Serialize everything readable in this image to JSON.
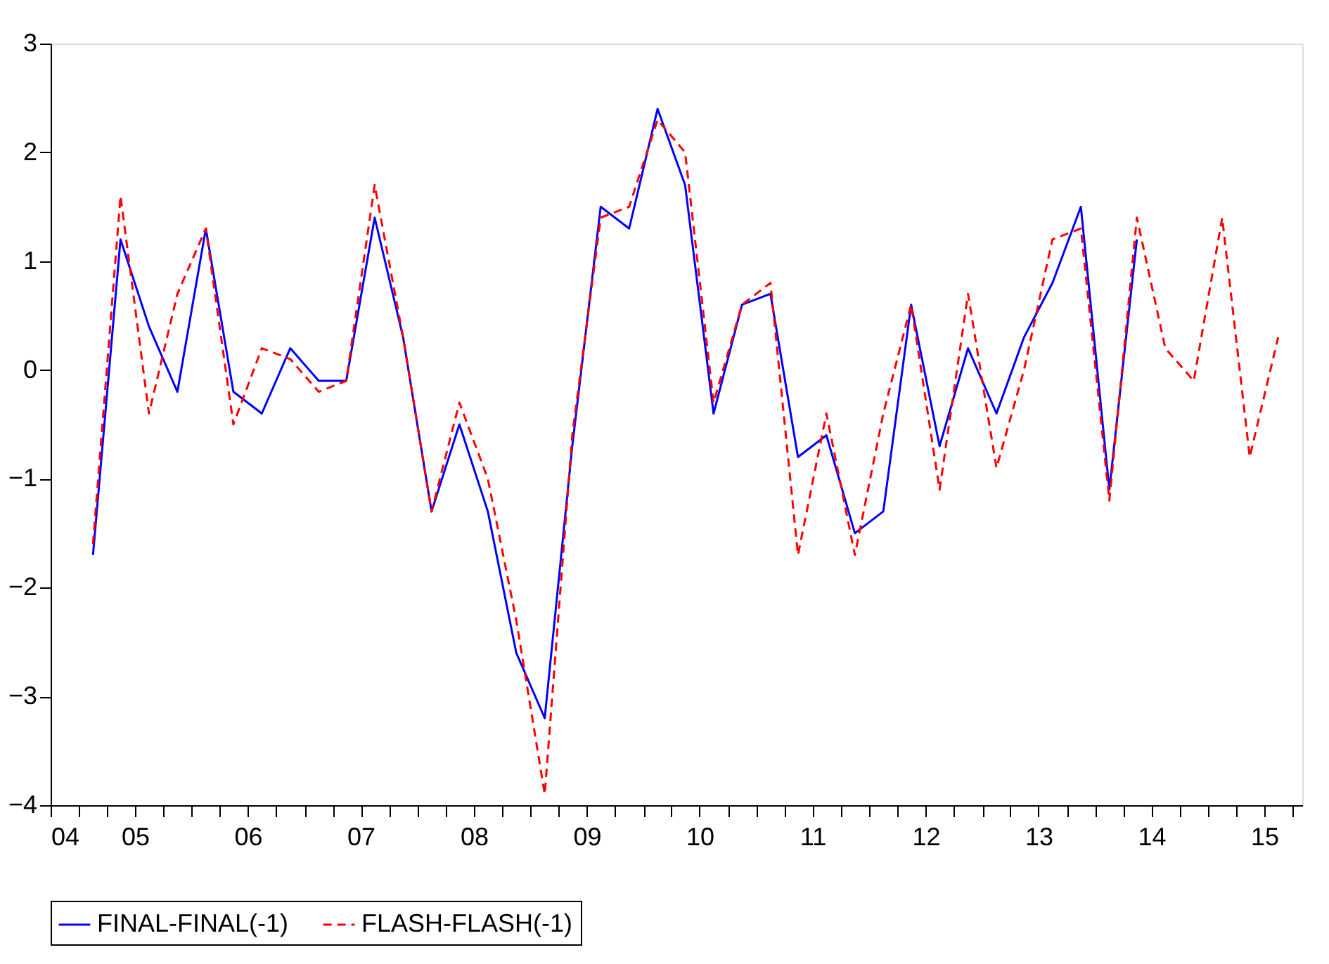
{
  "chart_data": {
    "type": "line",
    "x": [
      "2005-02-15",
      "2005-05-15",
      "2005-08-15",
      "2005-11-15",
      "2006-02-15",
      "2006-05-15",
      "2006-08-15",
      "2006-11-15",
      "2007-02-15",
      "2007-05-15",
      "2007-08-15",
      "2007-11-15",
      "2008-02-15",
      "2008-05-15",
      "2008-08-15",
      "2008-11-15",
      "2009-02-15",
      "2009-05-15",
      "2009-08-15",
      "2009-11-15",
      "2010-02-15",
      "2010-05-15",
      "2010-08-15",
      "2010-11-15",
      "2011-02-15",
      "2011-05-15",
      "2011-08-15",
      "2011-11-15",
      "2012-02-15",
      "2012-05-15",
      "2012-08-15",
      "2012-11-15",
      "2013-02-15",
      "2013-05-15",
      "2013-08-15",
      "2013-11-15",
      "2014-02-15",
      "2014-05-15",
      "2014-08-15",
      "2014-11-15",
      "2015-02-15",
      "2015-05-15",
      "2015-08-15"
    ],
    "series": [
      {
        "name": "FINAL-FINAL(-1)",
        "color": "#0000ff",
        "line_style": "solid",
        "values": [
          -1.7,
          1.2,
          0.4,
          -0.2,
          1.3,
          -0.2,
          -0.4,
          0.2,
          -0.1,
          -0.1,
          1.4,
          0.3,
          -1.3,
          -0.5,
          -1.3,
          -2.6,
          -3.2,
          -0.7,
          1.5,
          1.3,
          2.4,
          1.7,
          -0.4,
          0.6,
          0.7,
          -0.8,
          -0.6,
          -1.5,
          -1.3,
          0.6,
          -0.7,
          0.2,
          -0.4,
          0.3,
          0.8,
          1.5,
          -1.1,
          1.2,
          null,
          null,
          null,
          null,
          null
        ]
      },
      {
        "name": "FLASH-FLASH(-1)",
        "color": "#ff0000",
        "line_style": "dashed",
        "values": [
          -1.6,
          1.6,
          -0.4,
          0.7,
          1.3,
          -0.5,
          0.2,
          0.1,
          -0.2,
          -0.1,
          1.7,
          0.3,
          -1.3,
          -0.3,
          -1.0,
          -2.3,
          -3.9,
          -0.6,
          1.4,
          1.5,
          2.3,
          2.0,
          -0.3,
          0.6,
          0.8,
          -1.7,
          -0.4,
          -1.7,
          -0.4,
          0.6,
          -1.1,
          0.7,
          -0.9,
          0.0,
          1.2,
          1.3,
          -1.2,
          1.4,
          0.2,
          -0.1,
          1.4,
          -0.8,
          0.3
        ]
      }
    ],
    "xlim": [
      "2004-10-01",
      "2015-11-01"
    ],
    "xticks": [
      {
        "value": "2004-10-01",
        "label": "04"
      },
      {
        "value": "2005-01-01",
        "label": null
      },
      {
        "value": "2005-04-01",
        "label": null
      },
      {
        "value": "2005-07-01",
        "label": "05"
      },
      {
        "value": "2005-10-01",
        "label": null
      },
      {
        "value": "2006-01-01",
        "label": null
      },
      {
        "value": "2006-04-01",
        "label": null
      },
      {
        "value": "2006-07-01",
        "label": "06"
      },
      {
        "value": "2006-10-01",
        "label": null
      },
      {
        "value": "2007-01-01",
        "label": null
      },
      {
        "value": "2007-04-01",
        "label": null
      },
      {
        "value": "2007-07-01",
        "label": "07"
      },
      {
        "value": "2007-10-01",
        "label": null
      },
      {
        "value": "2008-01-01",
        "label": null
      },
      {
        "value": "2008-04-01",
        "label": null
      },
      {
        "value": "2008-07-01",
        "label": "08"
      },
      {
        "value": "2008-10-01",
        "label": null
      },
      {
        "value": "2009-01-01",
        "label": null
      },
      {
        "value": "2009-04-01",
        "label": null
      },
      {
        "value": "2009-07-01",
        "label": "09"
      },
      {
        "value": "2009-10-01",
        "label": null
      },
      {
        "value": "2010-01-01",
        "label": null
      },
      {
        "value": "2010-04-01",
        "label": null
      },
      {
        "value": "2010-07-01",
        "label": "10"
      },
      {
        "value": "2010-10-01",
        "label": null
      },
      {
        "value": "2011-01-01",
        "label": null
      },
      {
        "value": "2011-04-01",
        "label": null
      },
      {
        "value": "2011-07-01",
        "label": "11"
      },
      {
        "value": "2011-10-01",
        "label": null
      },
      {
        "value": "2012-01-01",
        "label": null
      },
      {
        "value": "2012-04-01",
        "label": null
      },
      {
        "value": "2012-07-01",
        "label": "12"
      },
      {
        "value": "2012-10-01",
        "label": null
      },
      {
        "value": "2013-01-01",
        "label": null
      },
      {
        "value": "2013-04-01",
        "label": null
      },
      {
        "value": "2013-07-01",
        "label": "13"
      },
      {
        "value": "2013-10-01",
        "label": null
      },
      {
        "value": "2014-01-01",
        "label": null
      },
      {
        "value": "2014-04-01",
        "label": null
      },
      {
        "value": "2014-07-01",
        "label": "14"
      },
      {
        "value": "2014-10-01",
        "label": null
      },
      {
        "value": "2015-01-01",
        "label": null
      },
      {
        "value": "2015-04-01",
        "label": null
      },
      {
        "value": "2015-07-01",
        "label": "15"
      },
      {
        "value": "2015-10-01",
        "label": null
      }
    ],
    "ylim": [
      -4,
      3
    ],
    "yticks": [
      -4,
      -3,
      -2,
      -1,
      0,
      1,
      2,
      3
    ],
    "grid": false,
    "legend": "bottom",
    "marker": "none"
  }
}
